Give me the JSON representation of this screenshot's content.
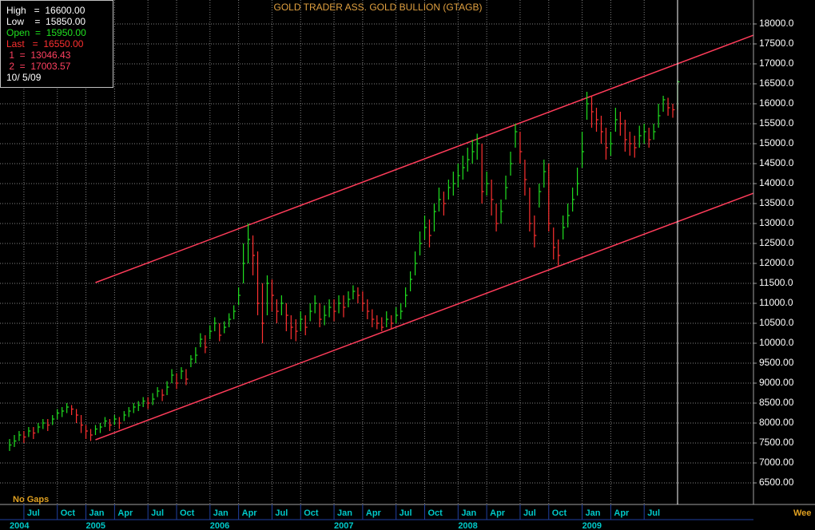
{
  "chart_data": {
    "type": "ohlc",
    "title": "GOLD TRADER ASS. GOLD BULLION (GTAGB)",
    "note": "No Gaps",
    "period": "Wee",
    "info": [
      "High   =  16600.00",
      "Low    =  15850.00",
      "Open  =  15950.00",
      "Last   =  16550.00",
      " 1  =  13046.43",
      " 2  =  17003.57",
      "10/ 5/09"
    ],
    "categories": [
      null,
      null,
      null,
      "Jul",
      null,
      null,
      null,
      null,
      null,
      null,
      "Oct",
      null,
      null,
      null,
      null,
      null,
      "Jan",
      null,
      null,
      null,
      null,
      null,
      "Apr",
      null,
      null,
      null,
      null,
      null,
      null,
      "Jul",
      null,
      null,
      null,
      null,
      null,
      "Oct",
      null,
      null,
      null,
      null,
      null,
      null,
      "Jan",
      null,
      null,
      null,
      null,
      null,
      "Apr",
      null,
      null,
      null,
      null,
      null,
      null,
      "Jul",
      null,
      null,
      null,
      null,
      null,
      "Oct",
      null,
      null,
      null,
      null,
      null,
      null,
      "Jan",
      null,
      null,
      null,
      null,
      null,
      "Apr",
      null,
      null,
      null,
      null,
      null,
      null,
      "Jul",
      null,
      null,
      null,
      null,
      null,
      "Oct",
      null,
      null,
      null,
      null,
      null,
      null,
      "Jan",
      null,
      null,
      null,
      null,
      null,
      "Apr",
      null,
      null,
      null,
      null,
      null,
      null,
      "Jul",
      null,
      null,
      null,
      null,
      null,
      "Oct",
      null,
      null,
      null,
      null,
      null,
      null,
      "Jan",
      null,
      null,
      null,
      null,
      null,
      "Apr",
      null,
      null,
      null,
      null,
      null,
      null,
      "Jul",
      null,
      null,
      null,
      null,
      null,
      null,
      null
    ],
    "year_labels": [
      "2004",
      null,
      null,
      null,
      null,
      null,
      null,
      null,
      null,
      null,
      null,
      null,
      null,
      null,
      null,
      null,
      "2005",
      null,
      null,
      null,
      null,
      null,
      null,
      null,
      null,
      null,
      null,
      null,
      null,
      null,
      null,
      null,
      null,
      null,
      null,
      null,
      null,
      null,
      null,
      null,
      null,
      null,
      "2006",
      null,
      null,
      null,
      null,
      null,
      null,
      null,
      null,
      null,
      null,
      null,
      null,
      null,
      null,
      null,
      null,
      null,
      null,
      null,
      null,
      null,
      null,
      null,
      null,
      null,
      "2007",
      null,
      null,
      null,
      null,
      null,
      null,
      null,
      null,
      null,
      null,
      null,
      null,
      null,
      null,
      null,
      null,
      null,
      null,
      null,
      null,
      null,
      null,
      null,
      null,
      null,
      "2008",
      null,
      null,
      null,
      null,
      null,
      null,
      null,
      null,
      null,
      null,
      null,
      null,
      null,
      null,
      null,
      null,
      null,
      null,
      null,
      null,
      null,
      null,
      null,
      null,
      null,
      "2009",
      null,
      null,
      null,
      null,
      null,
      null,
      null,
      null,
      null,
      null,
      null,
      null,
      null,
      null,
      null,
      null,
      null,
      null,
      null,
      null
    ],
    "high": [
      7600,
      7700,
      7800,
      7800,
      7900,
      7900,
      8000,
      8100,
      8100,
      8200,
      8350,
      8400,
      8500,
      8450,
      8350,
      8200,
      7950,
      7850,
      7950,
      8000,
      8150,
      8100,
      8200,
      8150,
      8300,
      8400,
      8500,
      8550,
      8650,
      8650,
      8750,
      8900,
      8850,
      9050,
      9350,
      9250,
      9400,
      9350,
      9700,
      9900,
      10250,
      10200,
      10450,
      10650,
      10500,
      10550,
      10750,
      10950,
      11400,
      12500,
      13000,
      12700,
      12300,
      11500,
      11700,
      11600,
      11100,
      11200,
      11000,
      10700,
      10600,
      10800,
      10700,
      11000,
      11200,
      11000,
      10950,
      11100,
      11100,
      11200,
      11200,
      11300,
      11450,
      11400,
      11300,
      11100,
      10850,
      10700,
      10650,
      10800,
      10700,
      10900,
      11000,
      11400,
      11800,
      12300,
      12800,
      13200,
      13100,
      13500,
      13900,
      13800,
      14100,
      14300,
      14500,
      14700,
      14900,
      15100,
      15250,
      15000,
      14300,
      14100,
      13500,
      13600,
      14200,
      14800,
      15500,
      15300,
      14600,
      13900,
      13200,
      14000,
      14600,
      14500,
      12900,
      12600,
      13200,
      13500,
      13900,
      14400,
      15300,
      16300,
      16200,
      15900,
      15700,
      15400,
      15300,
      15900,
      15800,
      15600,
      15300,
      15200,
      15450,
      15500,
      15400,
      15500,
      16000,
      16200,
      16150,
      16000,
      16600
    ],
    "low": [
      7300,
      7400,
      7550,
      7500,
      7650,
      7600,
      7750,
      7850,
      7800,
      7950,
      8100,
      8150,
      8250,
      8200,
      8000,
      7750,
      7600,
      7550,
      7700,
      7750,
      7900,
      7800,
      7950,
      7850,
      8050,
      8150,
      8250,
      8300,
      8400,
      8350,
      8450,
      8650,
      8550,
      8700,
      9000,
      8850,
      9100,
      8950,
      9400,
      9500,
      9900,
      9750,
      10100,
      10300,
      10050,
      10250,
      10400,
      10600,
      10950,
      11500,
      12000,
      11700,
      10700,
      10000,
      10700,
      10800,
      10500,
      10700,
      10300,
      10100,
      10050,
      10300,
      10200,
      10550,
      10750,
      10400,
      10450,
      10650,
      10550,
      10750,
      10650,
      10900,
      11100,
      11000,
      10800,
      10600,
      10400,
      10350,
      10300,
      10400,
      10350,
      10500,
      10600,
      10900,
      11300,
      11700,
      12200,
      12600,
      12400,
      12800,
      13300,
      13200,
      13600,
      13700,
      13900,
      14100,
      14300,
      14500,
      14600,
      13500,
      13700,
      13200,
      12800,
      13000,
      13600,
      14200,
      14900,
      14500,
      13700,
      12800,
      12400,
      13400,
      13900,
      12800,
      12100,
      11950,
      12600,
      12900,
      13300,
      13700,
      14400,
      15600,
      15400,
      15300,
      15000,
      14600,
      14700,
      15300,
      15200,
      14800,
      14700,
      14650,
      14900,
      15000,
      14900,
      15100,
      15400,
      15800,
      15700,
      15650,
      15850
    ],
    "close": [
      7450,
      7550,
      7700,
      7650,
      7800,
      7750,
      7900,
      8000,
      7950,
      8100,
      8250,
      8300,
      8400,
      8350,
      8200,
      7950,
      7800,
      7700,
      7850,
      7900,
      8050,
      7950,
      8100,
      8000,
      8200,
      8300,
      8400,
      8450,
      8550,
      8500,
      8600,
      8800,
      8700,
      8900,
      9200,
      9000,
      9300,
      9100,
      9600,
      9700,
      10100,
      9900,
      10300,
      10500,
      10200,
      10400,
      10600,
      10800,
      11200,
      12000,
      12600,
      12200,
      11000,
      10500,
      11500,
      11200,
      10800,
      11000,
      10700,
      10400,
      10300,
      10600,
      10400,
      10800,
      11000,
      10600,
      10700,
      10900,
      10800,
      11000,
      10900,
      11100,
      11300,
      11200,
      11000,
      10800,
      10600,
      10500,
      10400,
      10600,
      10500,
      10700,
      10800,
      11200,
      11600,
      12000,
      12500,
      12900,
      12700,
      13300,
      13600,
      13500,
      13900,
      14000,
      14200,
      14400,
      14600,
      14800,
      15000,
      13800,
      14000,
      13600,
      13000,
      13300,
      13900,
      14500,
      15300,
      14800,
      14100,
      13000,
      12700,
      13800,
      14300,
      13000,
      12400,
      12200,
      12900,
      13200,
      13600,
      14000,
      14800,
      16000,
      15800,
      15600,
      15300,
      14900,
      15000,
      15600,
      15500,
      15100,
      15000,
      14900,
      15200,
      15300,
      15100,
      15300,
      15700,
      16100,
      15900,
      15850,
      16550
    ],
    "up_color": "#20e020",
    "down_color": "#ff3030",
    "trendlines": [
      {
        "x": [
          18,
          140
        ],
        "values": [
          11520,
          17003.57
        ],
        "color": "#ff3c5a"
      },
      {
        "x": [
          18,
          140
        ],
        "values": [
          7580,
          13046.43
        ],
        "color": "#ff3c5a"
      }
    ],
    "ylim": [
      5960,
      18600
    ],
    "yticks": [
      {
        "value": 6500,
        "label": "6500.00"
      },
      {
        "value": 7000,
        "label": "7000.00"
      },
      {
        "value": 7500,
        "label": "7500.00"
      },
      {
        "value": 8000,
        "label": "8000.00"
      },
      {
        "value": 8500,
        "label": "8500.00"
      },
      {
        "value": 9000,
        "label": "9000.00"
      },
      {
        "value": 9500,
        "label": "9500.00"
      },
      {
        "value": 10000,
        "label": "10000.0"
      },
      {
        "value": 10500,
        "label": "10500.0"
      },
      {
        "value": 11000,
        "label": "11000.0"
      },
      {
        "value": 11500,
        "label": "11500.0"
      },
      {
        "value": 12000,
        "label": "12000.0"
      },
      {
        "value": 12500,
        "label": "12500.0"
      },
      {
        "value": 13000,
        "label": "13000.0"
      },
      {
        "value": 13500,
        "label": "13500.0"
      },
      {
        "value": 14000,
        "label": "14000.0"
      },
      {
        "value": 14500,
        "label": "14500.0"
      },
      {
        "value": 15000,
        "label": "15000.0"
      },
      {
        "value": 15500,
        "label": "15500.0"
      },
      {
        "value": 16000,
        "label": "16000.0"
      },
      {
        "value": 16500,
        "label": "16500.0"
      },
      {
        "value": 17000,
        "label": "17000.0"
      },
      {
        "value": 17500,
        "label": "17500.0"
      },
      {
        "value": 18000,
        "label": "18000.0"
      }
    ],
    "grid": true
  }
}
